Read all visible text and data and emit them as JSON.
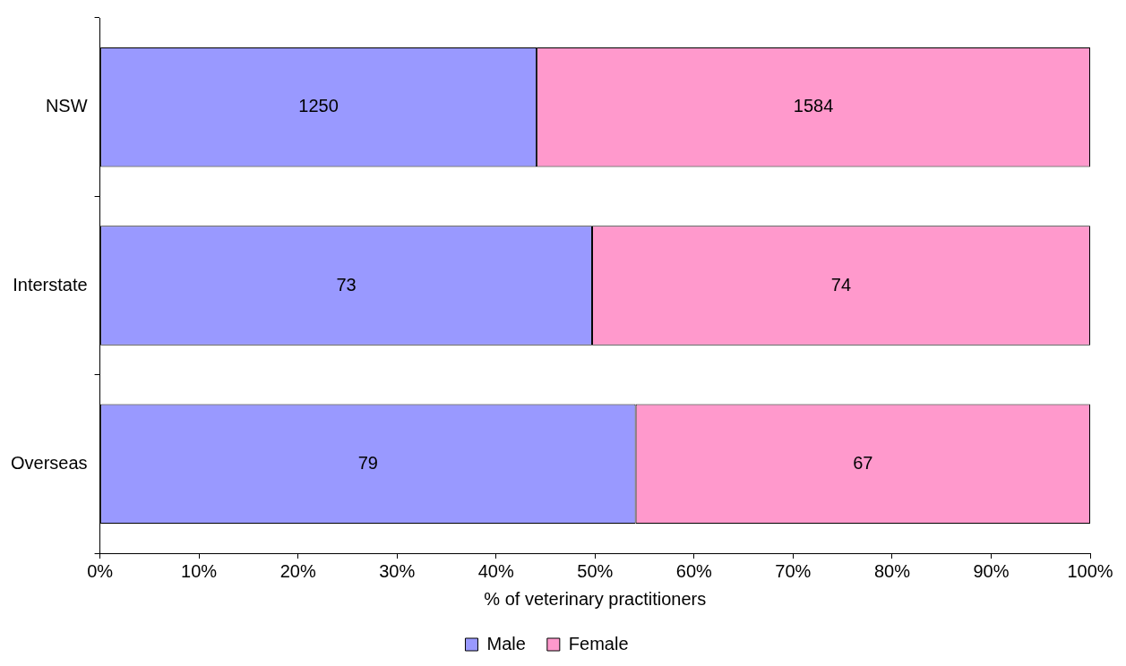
{
  "chart_data": {
    "type": "bar",
    "orientation": "horizontal",
    "stacked": true,
    "xlabel": "% of veterinary practitioners",
    "categories": [
      "NSW",
      "Interstate",
      "Overseas"
    ],
    "series": [
      {
        "name": "Male",
        "color": "#9999ff",
        "values": [
          44.1,
          49.7,
          54.1
        ]
      },
      {
        "name": "Female",
        "color": "#ff99cc",
        "values": [
          55.9,
          50.3,
          45.9
        ]
      }
    ],
    "annotations": [
      "1250",
      "1584",
      "73",
      "74",
      "79",
      "67"
    ],
    "xlim": [
      0,
      100
    ],
    "xticks": [
      {
        "value": 0,
        "label": "0%"
      },
      {
        "value": 10,
        "label": "10%"
      },
      {
        "value": 20,
        "label": "20%"
      },
      {
        "value": 30,
        "label": "30%"
      },
      {
        "value": 40,
        "label": "40%"
      },
      {
        "value": 50,
        "label": "50%"
      },
      {
        "value": 60,
        "label": "60%"
      },
      {
        "value": 70,
        "label": "70%"
      },
      {
        "value": 80,
        "label": "80%"
      },
      {
        "value": 90,
        "label": "90%"
      },
      {
        "value": 100,
        "label": "100%"
      }
    ],
    "legend": "bottom"
  }
}
